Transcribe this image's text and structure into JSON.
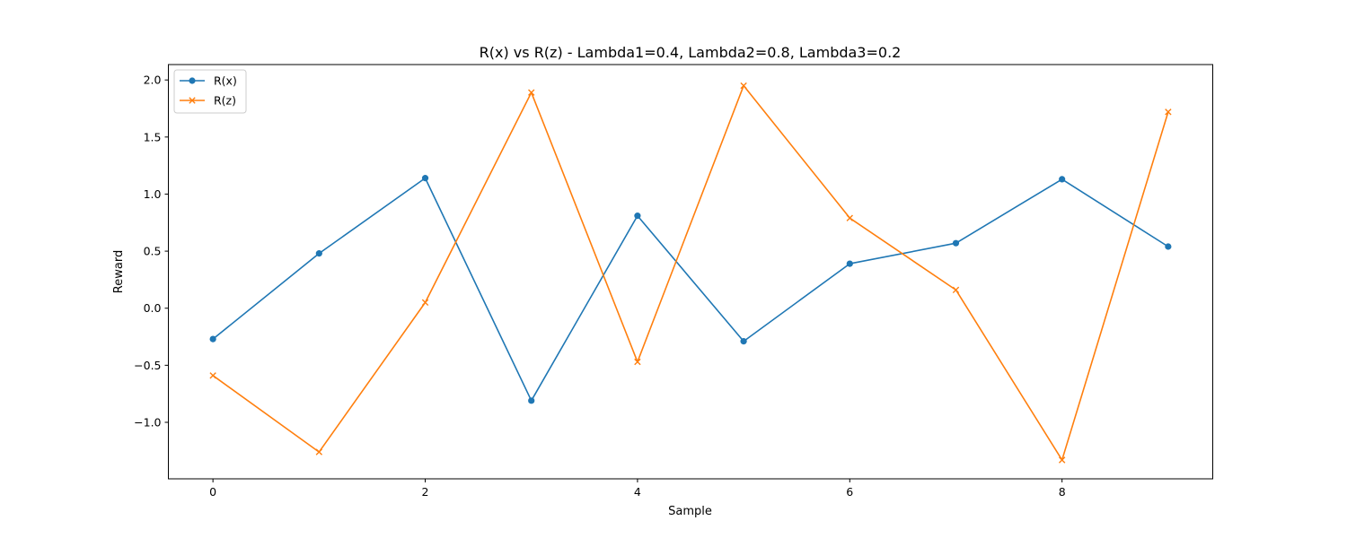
{
  "chart_data": {
    "type": "line",
    "title": "R(x) vs R(z) - Lambda1=0.4, Lambda2=0.8, Lambda3=0.2",
    "xlabel": "Sample",
    "ylabel": "Reward",
    "x": [
      0,
      1,
      2,
      3,
      4,
      5,
      6,
      7,
      8,
      9
    ],
    "xlim": [
      -0.42,
      9.42
    ],
    "ylim": [
      -1.495,
      2.135
    ],
    "x_ticks": [
      0,
      2,
      4,
      6,
      8
    ],
    "x_tick_labels": [
      "0",
      "2",
      "4",
      "6",
      "8"
    ],
    "y_ticks": [
      -1.0,
      -0.5,
      0.0,
      0.5,
      1.0,
      1.5,
      2.0
    ],
    "y_tick_labels": [
      "−1.0",
      "−0.5",
      "0.0",
      "0.5",
      "1.0",
      "1.5",
      "2.0"
    ],
    "grid": false,
    "legend_position": "upper-left",
    "series": [
      {
        "name": "R(x)",
        "color": "#1f77b4",
        "marker": "circle",
        "values": [
          -0.27,
          0.48,
          1.14,
          -0.81,
          0.81,
          -0.29,
          0.39,
          0.57,
          1.13,
          0.54
        ]
      },
      {
        "name": "R(z)",
        "color": "#ff7f0e",
        "marker": "x",
        "values": [
          -0.59,
          -1.26,
          0.05,
          1.89,
          -0.47,
          1.95,
          0.79,
          0.16,
          -1.33,
          1.72
        ]
      }
    ]
  }
}
